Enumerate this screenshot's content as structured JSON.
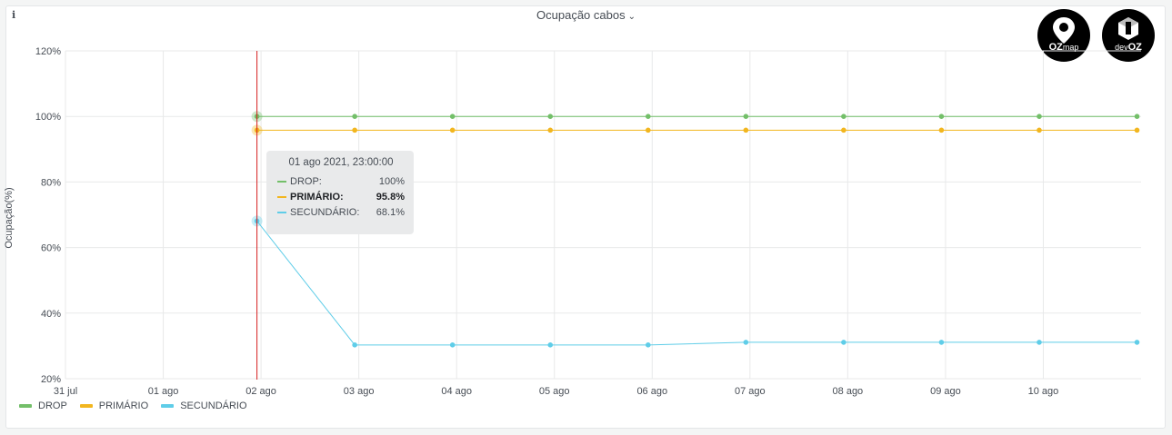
{
  "panel": {
    "title": "Ocupação cabos",
    "info_icon": "i",
    "menu_icon": "chevron-down-icon"
  },
  "logos": {
    "ozmap": {
      "main": "OZ",
      "sub": "map"
    },
    "devoz": {
      "main": "OZ",
      "sub": "dev"
    }
  },
  "colors": {
    "drop": "#73bf69",
    "primario": "#f2b61f",
    "secundario": "#5fcde8",
    "cursor": "#d62020"
  },
  "tooltip": {
    "title": "01 ago 2021, 23:00:00",
    "rows": [
      {
        "name": "DROP:",
        "value": "100%"
      },
      {
        "name": "PRIMÁRIO:",
        "value": "95.8%"
      },
      {
        "name": "SECUNDÁRIO:",
        "value": "68.1%"
      }
    ]
  },
  "chart_data": {
    "type": "line",
    "title": "Ocupação cabos",
    "ylabel": "Ocupação(%)",
    "xlabel": "",
    "ylim": [
      20,
      120
    ],
    "xlim": [
      "2021-07-31T00:00",
      "2021-08-11T00:00"
    ],
    "y_ticks": [
      "20%",
      "40%",
      "60%",
      "80%",
      "100%",
      "120%"
    ],
    "x_ticks": [
      "31 jul",
      "01 ago",
      "02 ago",
      "03 ago",
      "04 ago",
      "05 ago",
      "06 ago",
      "07 ago",
      "08 ago",
      "09 ago",
      "10 ago"
    ],
    "grid": true,
    "legend_position": "bottom-left",
    "cursor_x": "2021-08-01T23:00",
    "x": [
      "2021-08-01T23:00",
      "2021-08-02T23:00",
      "2021-08-03T23:00",
      "2021-08-04T23:00",
      "2021-08-05T23:00",
      "2021-08-06T23:00",
      "2021-08-07T23:00",
      "2021-08-08T23:00",
      "2021-08-09T23:00",
      "2021-08-10T23:00"
    ],
    "series": [
      {
        "name": "DROP",
        "values": [
          100,
          100,
          100,
          100,
          100,
          100,
          100,
          100,
          100,
          100
        ]
      },
      {
        "name": "PRIMÁRIO",
        "values": [
          95.8,
          95.8,
          95.8,
          95.8,
          95.8,
          95.8,
          95.8,
          95.8,
          95.8,
          95.8
        ]
      },
      {
        "name": "SECUNDÁRIO",
        "values": [
          68.1,
          30.3,
          30.3,
          30.3,
          30.3,
          31.1,
          31.1,
          31.1,
          31.1,
          31.1
        ]
      }
    ]
  }
}
